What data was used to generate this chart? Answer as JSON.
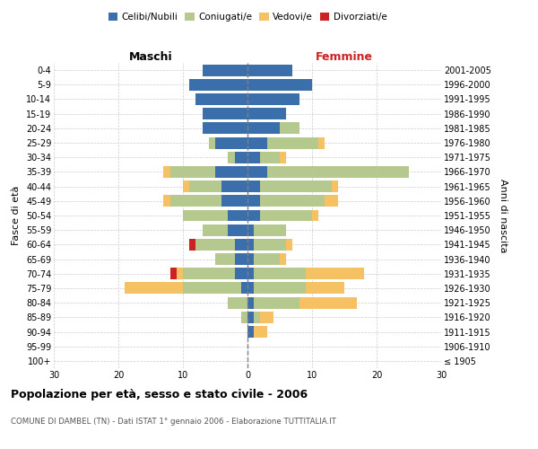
{
  "age_groups": [
    "100+",
    "95-99",
    "90-94",
    "85-89",
    "80-84",
    "75-79",
    "70-74",
    "65-69",
    "60-64",
    "55-59",
    "50-54",
    "45-49",
    "40-44",
    "35-39",
    "30-34",
    "25-29",
    "20-24",
    "15-19",
    "10-14",
    "5-9",
    "0-4"
  ],
  "birth_years": [
    "≤ 1905",
    "1906-1910",
    "1911-1915",
    "1916-1920",
    "1921-1925",
    "1926-1930",
    "1931-1935",
    "1936-1940",
    "1941-1945",
    "1946-1950",
    "1951-1955",
    "1956-1960",
    "1961-1965",
    "1966-1970",
    "1971-1975",
    "1976-1980",
    "1981-1985",
    "1986-1990",
    "1991-1995",
    "1996-2000",
    "2001-2005"
  ],
  "colors": {
    "celibi": "#3a6fac",
    "coniugati": "#b5c98e",
    "vedovi": "#f5c162",
    "divorziati": "#cc2222"
  },
  "males": {
    "celibi": [
      0,
      0,
      0,
      0,
      0,
      1,
      2,
      2,
      2,
      3,
      3,
      4,
      4,
      5,
      2,
      5,
      7,
      7,
      8,
      9,
      7
    ],
    "coniugati": [
      0,
      0,
      0,
      1,
      3,
      9,
      8,
      3,
      6,
      4,
      7,
      8,
      5,
      7,
      1,
      1,
      0,
      0,
      0,
      0,
      0
    ],
    "vedovi": [
      0,
      0,
      0,
      0,
      0,
      9,
      1,
      0,
      0,
      0,
      0,
      1,
      1,
      1,
      0,
      0,
      0,
      0,
      0,
      0,
      0
    ],
    "divorziati": [
      0,
      0,
      0,
      0,
      0,
      0,
      1,
      0,
      1,
      0,
      0,
      0,
      0,
      0,
      0,
      0,
      0,
      0,
      0,
      0,
      0
    ]
  },
  "females": {
    "celibi": [
      0,
      0,
      1,
      1,
      1,
      1,
      1,
      1,
      1,
      1,
      2,
      2,
      2,
      3,
      2,
      3,
      5,
      6,
      8,
      10,
      7
    ],
    "coniugati": [
      0,
      0,
      0,
      1,
      7,
      8,
      8,
      4,
      5,
      5,
      8,
      10,
      11,
      22,
      3,
      8,
      3,
      0,
      0,
      0,
      0
    ],
    "vedovi": [
      0,
      0,
      2,
      2,
      9,
      6,
      9,
      1,
      1,
      0,
      1,
      2,
      1,
      0,
      1,
      1,
      0,
      0,
      0,
      0,
      0
    ],
    "divorziati": [
      0,
      0,
      0,
      0,
      0,
      0,
      0,
      0,
      0,
      0,
      0,
      0,
      0,
      0,
      0,
      0,
      0,
      0,
      0,
      0,
      0
    ]
  },
  "xlim": 30,
  "title": "Popolazione per età, sesso e stato civile - 2006",
  "subtitle": "COMUNE DI DAMBEL (TN) - Dati ISTAT 1° gennaio 2006 - Elaborazione TUTTITALIA.IT",
  "ylabel_left": "Fasce di età",
  "ylabel_right": "Anni di nascita",
  "xlabel_left": "Maschi",
  "xlabel_right": "Femmine",
  "femmine_color": "#cc2222"
}
